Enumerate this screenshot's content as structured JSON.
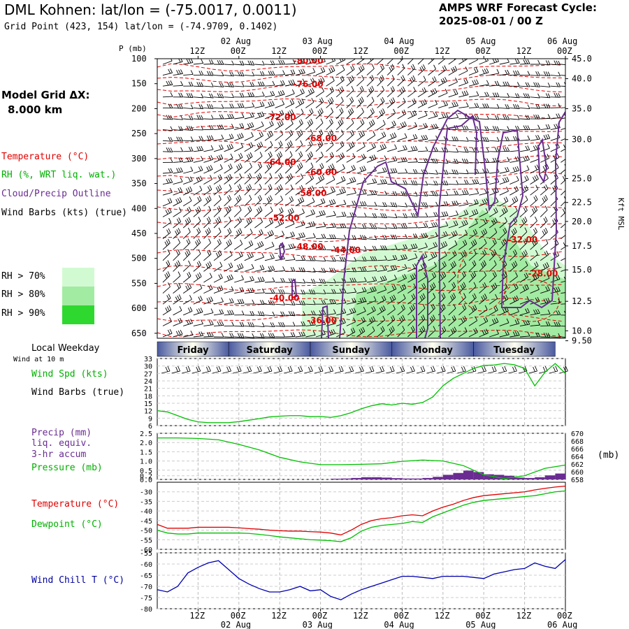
{
  "header": {
    "title": "DML Kohnen:  lat/lon = (-75.0017, 0.0011)",
    "subtitle": "Grid Point (423, 154) lat/lon = (-74.9709, 0.1402)",
    "cycle_label": "AMPS WRF Forecast Cycle:",
    "cycle_value": "2025-08-01 / 00  Z",
    "grid_label": "Model Grid ΔX:",
    "grid_value": "8.000 km"
  },
  "legend": {
    "temperature": "Temperature (°C)",
    "rh": "RH (%, WRT liq. wat.)",
    "cloud": "Cloud/Precip Outline",
    "wind_barbs": "Wind Barbs (kts) (true)",
    "rh70": "RH > 70%",
    "rh80": "RH > 80%",
    "rh90": "RH > 90%",
    "local_weekday": "Local Weekday",
    "wind_at": "Wind at 10 m",
    "wind_spd": "Wind Spd (kts)",
    "wind_barbs2": "Wind Barbs (true)",
    "precip1": "Precip (mm)",
    "precip2": "liq. equiv.",
    "precip3": "3-hr accum",
    "pressure": "Pressure (mb)",
    "temperature2": "Temperature (°C)",
    "dewpoint": "Dewpoint (°C)",
    "windchill": "Wind Chill T (°C)",
    "mb_unit": "(mb)"
  },
  "colors": {
    "temperature": "#e00000",
    "rh": "#00b000",
    "cloud": "#6a2c91",
    "rh70": "#d2fad2",
    "rh80": "#a2eba2",
    "rh90": "#2fd82f",
    "windchill": "#0000a0",
    "day_band": "#4a5aa0"
  },
  "time_axis": {
    "hour_labels": [
      "12Z",
      "00Z",
      "12Z",
      "00Z",
      "12Z",
      "00Z",
      "12Z",
      "00Z",
      "12Z",
      "00Z"
    ],
    "hour_values": [
      12,
      24,
      36,
      48,
      60,
      72,
      84,
      96,
      108,
      120
    ],
    "date_labels": [
      "02 Aug",
      "03 Aug",
      "04 Aug",
      "05 Aug",
      "06 Aug"
    ],
    "date_values": [
      24,
      48,
      72,
      96,
      120
    ],
    "days": [
      "Friday",
      "Saturday",
      "Sunday",
      "Monday",
      "Tuesday"
    ],
    "day_bounds": [
      0,
      21,
      45,
      69,
      93,
      117
    ]
  },
  "chart_data": [
    {
      "type": "heatmap",
      "title": "Vertical cross-section: temperature, RH, cloud outline, wind barbs",
      "p_axis_label": "P (mb)",
      "p_ticks": [
        100,
        150,
        200,
        250,
        300,
        350,
        400,
        450,
        500,
        550,
        600,
        650
      ],
      "kft_axis_label": "Kft MSL",
      "kft_ticks": [
        {
          "label": "45.0",
          "p": 100
        },
        {
          "label": "40.0",
          "p": 140
        },
        {
          "label": "35.0",
          "p": 200
        },
        {
          "label": "30.0",
          "p": 262
        },
        {
          "label": "25.0",
          "p": 340
        },
        {
          "label": "22.5",
          "p": 388
        },
        {
          "label": "20.0",
          "p": 426
        },
        {
          "label": "17.5",
          "p": 475
        },
        {
          "label": "15.0",
          "p": 523
        },
        {
          "label": "12.5",
          "p": 586
        },
        {
          "label": "10.0",
          "p": 645
        },
        {
          "label": "9.50",
          "p": 665
        }
      ],
      "temperature_labels": [
        {
          "text": "-80.00",
          "t": 40,
          "p": 110
        },
        {
          "text": "-76.00",
          "t": 40,
          "p": 157
        },
        {
          "text": "-72.00",
          "t": 32,
          "p": 223
        },
        {
          "text": "-68.00",
          "t": 44,
          "p": 265
        },
        {
          "text": "-64.00",
          "t": 32,
          "p": 313
        },
        {
          "text": "-60.00",
          "t": 44,
          "p": 333
        },
        {
          "text": "-56.00",
          "t": 41,
          "p": 375
        },
        {
          "text": "-52.00",
          "t": 33,
          "p": 425
        },
        {
          "text": "-48.00",
          "t": 40,
          "p": 482
        },
        {
          "text": "-44.00",
          "t": 51,
          "p": 489
        },
        {
          "text": "-40.00",
          "t": 33,
          "p": 585
        },
        {
          "text": "-36.00",
          "t": 44,
          "p": 630
        },
        {
          "text": "-32.00",
          "t": 103,
          "p": 468
        },
        {
          "text": "-28.00",
          "t": 109,
          "p": 536
        }
      ]
    },
    {
      "type": "line",
      "title": "10 m wind speed",
      "ylim": [
        6,
        33
      ],
      "yticks": [
        6,
        9,
        12,
        15,
        18,
        21,
        24,
        27,
        30,
        33
      ],
      "x": [
        0,
        3,
        6,
        9,
        12,
        15,
        18,
        21,
        24,
        27,
        30,
        33,
        36,
        39,
        42,
        45,
        48,
        51,
        54,
        57,
        60,
        63,
        66,
        69,
        72,
        75,
        78,
        81,
        84,
        87,
        90,
        93,
        96,
        99,
        102,
        105,
        108,
        111,
        114,
        117,
        120
      ],
      "values": [
        12,
        11.5,
        10,
        8.5,
        7.5,
        7.2,
        7.2,
        7.2,
        7.6,
        8.2,
        8.8,
        9.5,
        9.8,
        10,
        10,
        9.6,
        9.7,
        9.3,
        10,
        11.2,
        12.8,
        14,
        14.8,
        14.3,
        15,
        14.6,
        15.3,
        17.5,
        22,
        25,
        27,
        29,
        30.2,
        30.4,
        31,
        30.5,
        29,
        22,
        27.5,
        31,
        27
      ]
    },
    {
      "type": "bar",
      "title": "3-hr precip and surface pressure",
      "ylim": [
        0,
        2.5
      ],
      "yticks_left": [
        "0.0",
        "0.2",
        "0.5",
        "1.0",
        "1.5",
        "2.0",
        "2.5"
      ],
      "yticks_left_values": [
        0,
        0.2,
        0.5,
        1.0,
        1.5,
        2.0,
        2.5
      ],
      "yticks_right": [
        658,
        660,
        662,
        664,
        666,
        668,
        670
      ],
      "precip_x": [
        54,
        57,
        60,
        63,
        66,
        69,
        72,
        75,
        78,
        81,
        84,
        87,
        90,
        93,
        96,
        99,
        102,
        105,
        108,
        111,
        114,
        117,
        120
      ],
      "precip_values": [
        0.04,
        0.05,
        0.08,
        0.12,
        0.12,
        0.1,
        0.07,
        0.05,
        0.05,
        0.08,
        0.14,
        0.25,
        0.35,
        0.48,
        0.4,
        0.28,
        0.25,
        0.2,
        0.1,
        0.08,
        0.12,
        0.22,
        0.32
      ],
      "pressure_x": [
        0,
        6,
        12,
        18,
        24,
        30,
        36,
        42,
        48,
        54,
        60,
        66,
        72,
        78,
        84,
        90,
        96,
        102,
        108,
        114,
        120
      ],
      "pressure_values": [
        2.25,
        2.25,
        2.22,
        2.15,
        1.9,
        1.6,
        1.2,
        0.95,
        0.8,
        0.8,
        0.82,
        0.85,
        0.98,
        1.05,
        1.0,
        0.75,
        0.25,
        0.05,
        0.2,
        0.6,
        0.78
      ]
    },
    {
      "type": "line",
      "title": "Temperature and dewpoint",
      "ylim": [
        -60,
        -25
      ],
      "yticks": [
        -30,
        -35,
        -40,
        -45,
        -50,
        -55,
        -60
      ],
      "x": [
        0,
        3,
        6,
        9,
        12,
        15,
        18,
        21,
        24,
        27,
        30,
        33,
        36,
        39,
        42,
        45,
        48,
        51,
        54,
        57,
        60,
        63,
        66,
        69,
        72,
        75,
        78,
        81,
        84,
        87,
        90,
        93,
        96,
        99,
        102,
        105,
        108,
        111,
        114,
        117,
        120
      ],
      "series": [
        {
          "name": "Temperature",
          "values": [
            -47,
            -49,
            -49,
            -49,
            -48.5,
            -48.5,
            -48.5,
            -48.5,
            -48.8,
            -49.2,
            -49.5,
            -50,
            -50.3,
            -50.5,
            -50.5,
            -50.8,
            -51,
            -51.5,
            -52.5,
            -50,
            -47,
            -45,
            -44,
            -43.5,
            -42.5,
            -42,
            -42.5,
            -40,
            -38,
            -36.5,
            -34.5,
            -33,
            -32,
            -31.5,
            -31,
            -30.5,
            -30,
            -29,
            -28.2,
            -27.5,
            -27
          ]
        },
        {
          "name": "Dewpoint",
          "values": [
            -50,
            -51.5,
            -52,
            -52,
            -51.5,
            -51.5,
            -51.5,
            -51.5,
            -51.5,
            -51.7,
            -52.2,
            -52.8,
            -53.5,
            -54,
            -54.5,
            -55,
            -55.2,
            -55.5,
            -56,
            -54,
            -50.5,
            -48.5,
            -47.5,
            -47,
            -46.5,
            -45.5,
            -46,
            -43,
            -41,
            -39,
            -37,
            -35.5,
            -34.5,
            -34,
            -33.5,
            -33,
            -32.5,
            -32,
            -31,
            -30,
            -29.5
          ]
        }
      ]
    },
    {
      "type": "line",
      "title": "Wind chill",
      "ylim": [
        -80,
        -55
      ],
      "yticks": [
        -55,
        -60,
        -65,
        -70,
        -75,
        -80
      ],
      "x": [
        0,
        3,
        6,
        9,
        12,
        15,
        18,
        21,
        24,
        27,
        30,
        33,
        36,
        39,
        42,
        45,
        48,
        51,
        54,
        57,
        60,
        63,
        66,
        69,
        72,
        75,
        78,
        81,
        84,
        87,
        90,
        93,
        96,
        99,
        102,
        105,
        108,
        111,
        114,
        117,
        120
      ],
      "values": [
        -71.5,
        -72.5,
        -70,
        -64,
        -61.5,
        -59.5,
        -58.5,
        -62.5,
        -66.5,
        -69,
        -71,
        -72.5,
        -72.5,
        -71.5,
        -70,
        -72,
        -71.5,
        -74.5,
        -76,
        -73.5,
        -71.5,
        -70,
        -68.5,
        -67,
        -65.5,
        -65.5,
        -66,
        -66.5,
        -65.5,
        -65.5,
        -65.5,
        -66,
        -66.5,
        -64.5,
        -63.5,
        -62.5,
        -62,
        -59.5,
        -61,
        -62,
        -58
      ]
    }
  ]
}
